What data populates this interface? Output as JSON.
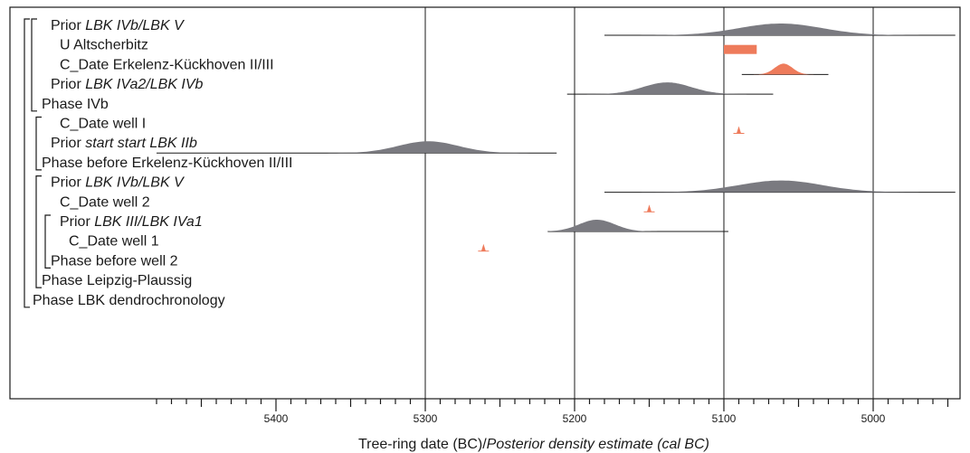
{
  "chart_data": {
    "type": "area",
    "title": "",
    "xlabel_plain": "Tree-ring date (BC)/",
    "xlabel_italic": "Posterior density estimate (cal BC)",
    "xlim": [
      5480,
      4940
    ],
    "x_reversed": true,
    "xticks": [
      5400,
      5300,
      5200,
      5100,
      5000
    ],
    "tick_labels": [
      "5400",
      "5300",
      "5200",
      "5100",
      "5000"
    ],
    "minor_tick_step": 10,
    "grid": true,
    "grid_lines": [
      5300,
      5200,
      5100,
      5000
    ],
    "colors": {
      "prior": "#7a7a80",
      "date": "#ee7b5b",
      "line": "#1a1a1a"
    },
    "rows": [
      {
        "plain": "Prior ",
        "italic": "LBK IVb/LBK V",
        "indent": 1,
        "dist": {
          "kind": "prior",
          "from": 5180,
          "to": 4945,
          "peak": 5062,
          "spread": 28
        }
      },
      {
        "plain": "U Altscherbitz",
        "italic": "",
        "indent": 2,
        "dist": {
          "kind": "uniform",
          "from": 5100,
          "to": 5078
        }
      },
      {
        "plain": "C_Date Erkelenz-Kückhoven II/III",
        "italic": "",
        "indent": 2,
        "dist": {
          "kind": "date",
          "from": 5088,
          "to": 5030,
          "peak": 5060,
          "spread": 6
        }
      },
      {
        "plain": "Prior ",
        "italic": "LBK IVa2/LBK IVb",
        "indent": 1,
        "dist": {
          "kind": "prior",
          "from": 5205,
          "to": 5067,
          "peak": 5138,
          "spread": 16
        }
      },
      {
        "plain": "Phase IVb",
        "italic": "",
        "indent": 0,
        "dist": null
      },
      {
        "plain": "C_Date well I",
        "italic": "",
        "indent": 2,
        "dist": {
          "kind": "spike",
          "at": 5090
        }
      },
      {
        "plain": "Prior ",
        "italic": "start start LBK IIb",
        "indent": 1,
        "strike": true,
        "dist": {
          "kind": "prior",
          "from": 5480,
          "to": 5212,
          "peak": 5298,
          "spread": 20
        }
      },
      {
        "plain": "Phase before Erkelenz-Kückhoven II/III",
        "italic": "",
        "indent": 0,
        "dist": null
      },
      {
        "plain": "Prior ",
        "italic": "LBK IVb/LBK V",
        "indent": 1,
        "dist": {
          "kind": "prior",
          "from": 5180,
          "to": 4945,
          "peak": 5062,
          "spread": 28
        }
      },
      {
        "plain": "C_Date well 2",
        "italic": "",
        "indent": 2,
        "dist": {
          "kind": "spike",
          "at": 5150
        }
      },
      {
        "plain": "Prior ",
        "italic": "LBK III/LBK IVa1",
        "indent": 2,
        "dist": {
          "kind": "prior",
          "from": 5218,
          "to": 5097,
          "peak": 5185,
          "spread": 12
        }
      },
      {
        "plain": "C_Date well 1",
        "italic": "",
        "indent": 3,
        "dist": {
          "kind": "spike",
          "at": 5261
        }
      },
      {
        "plain": "Phase before well 2",
        "italic": "",
        "indent": 1,
        "dist": null
      },
      {
        "plain": "Phase Leipzig-Plaussig",
        "italic": "",
        "indent": 0,
        "dist": null
      },
      {
        "plain": "Phase LBK dendrochronology",
        "italic": "",
        "indent": -1,
        "dist": null
      }
    ],
    "brackets": [
      {
        "from_row": 0,
        "to_row": 14
      },
      {
        "from_row": 0,
        "to_row": 4
      },
      {
        "from_row": 5,
        "to_row": 7
      },
      {
        "from_row": 8,
        "to_row": 13
      },
      {
        "from_row": 10,
        "to_row": 12
      }
    ]
  }
}
